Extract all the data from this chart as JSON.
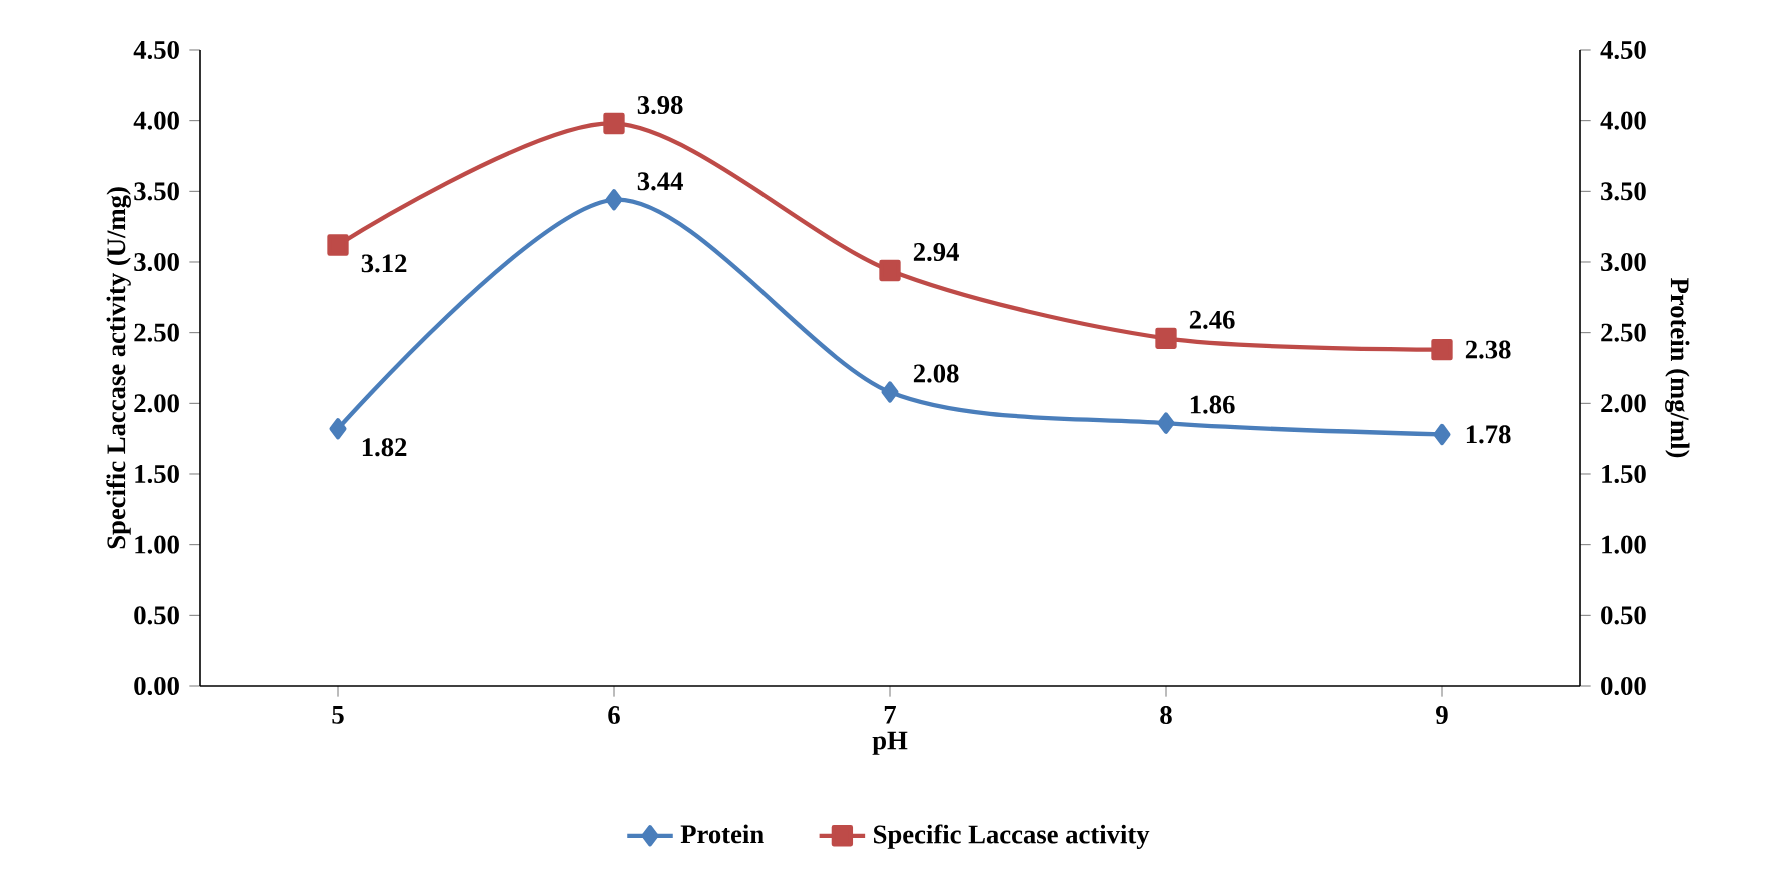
{
  "chart_data": {
    "type": "line",
    "xlabel": "pH",
    "ylabel": "Specific Laccase activity (U/mg)",
    "y2label": "Protein (mg/ml)",
    "categories": [
      "5",
      "6",
      "7",
      "8",
      "9"
    ],
    "series": [
      {
        "name": "Protein",
        "color": "#4a7ebb",
        "values": [
          1.82,
          3.44,
          2.08,
          1.86,
          1.78
        ],
        "axis": "y2",
        "marker": "diamond"
      },
      {
        "name": "Specific Laccase activity",
        "color": "#be4b48",
        "values": [
          3.12,
          3.98,
          2.94,
          2.46,
          2.38
        ],
        "axis": "y",
        "marker": "square"
      }
    ],
    "ylim": [
      0,
      4.5
    ],
    "yticks": [
      {
        "value": 0,
        "label": "0.00"
      },
      {
        "value": 0.5,
        "label": "0.50"
      },
      {
        "value": 1,
        "label": "1.00"
      },
      {
        "value": 1.5,
        "label": "1.50"
      },
      {
        "value": 2,
        "label": "2.00"
      },
      {
        "value": 2.5,
        "label": "2.50"
      },
      {
        "value": 3,
        "label": "3.00"
      },
      {
        "value": 3.5,
        "label": "3.50"
      },
      {
        "value": 4,
        "label": "4.00"
      },
      {
        "value": 4.5,
        "label": "4.50"
      }
    ],
    "y2lim": [
      0,
      4.5
    ],
    "y2ticks": [
      {
        "value": 0,
        "label": "0.00"
      },
      {
        "value": 0.5,
        "label": "0.50"
      },
      {
        "value": 1,
        "label": "1.00"
      },
      {
        "value": 1.5,
        "label": "1.50"
      },
      {
        "value": 2,
        "label": "2.00"
      },
      {
        "value": 2.5,
        "label": "2.50"
      },
      {
        "value": 3,
        "label": "3.00"
      },
      {
        "value": 3.5,
        "label": "3.50"
      },
      {
        "value": 4,
        "label": "4.00"
      },
      {
        "value": 4.5,
        "label": "4.50"
      }
    ],
    "data_labels": true,
    "legend": "bottom",
    "grid": false
  }
}
